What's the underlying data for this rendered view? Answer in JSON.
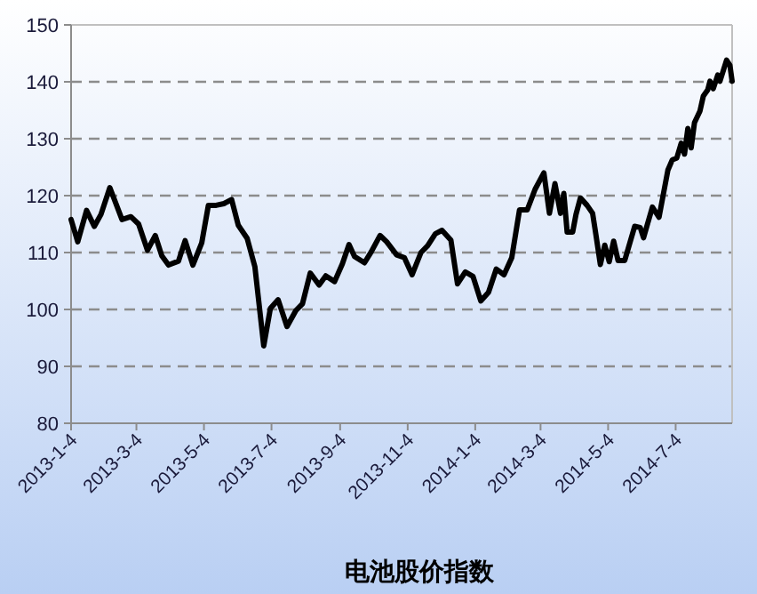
{
  "chart_data": {
    "type": "line",
    "xlabel": "电池股价指数",
    "x": [
      "2013-01-04",
      "2013-01-10",
      "2013-01-18",
      "2013-01-25",
      "2013-01-31",
      "2013-02-08",
      "2013-02-19",
      "2013-02-27",
      "2013-03-06",
      "2013-03-14",
      "2013-03-21",
      "2013-03-27",
      "2013-04-02",
      "2013-04-11",
      "2013-04-17",
      "2013-04-24",
      "2013-05-02",
      "2013-05-08",
      "2013-05-15",
      "2013-05-22",
      "2013-05-29",
      "2013-06-04",
      "2013-06-12",
      "2013-06-19",
      "2013-06-27",
      "2013-07-03",
      "2013-07-10",
      "2013-07-18",
      "2013-07-26",
      "2013-08-01",
      "2013-08-08",
      "2013-08-16",
      "2013-08-22",
      "2013-08-30",
      "2013-09-06",
      "2013-09-12",
      "2013-09-17",
      "2013-09-26",
      "2013-10-02",
      "2013-10-10",
      "2013-10-16",
      "2013-10-25",
      "2013-11-01",
      "2013-11-08",
      "2013-11-16",
      "2013-11-22",
      "2013-11-29",
      "2013-12-05",
      "2013-12-13",
      "2013-12-19",
      "2013-12-26",
      "2014-01-02",
      "2014-01-09",
      "2014-01-16",
      "2014-01-23",
      "2014-01-30",
      "2014-02-06",
      "2014-02-13",
      "2014-02-20",
      "2014-02-27",
      "2014-03-07",
      "2014-03-12",
      "2014-03-17",
      "2014-03-22",
      "2014-03-25",
      "2014-03-28",
      "2014-04-02",
      "2014-04-05",
      "2014-04-09",
      "2014-04-15",
      "2014-04-20",
      "2014-04-23",
      "2014-04-27",
      "2014-05-01",
      "2014-05-05",
      "2014-05-09",
      "2014-05-13",
      "2014-05-19",
      "2014-05-28",
      "2014-06-02",
      "2014-06-05",
      "2014-06-13",
      "2014-06-19",
      "2014-06-27",
      "2014-07-01",
      "2014-07-05",
      "2014-07-09",
      "2014-07-12",
      "2014-07-15",
      "2014-07-18",
      "2014-07-21",
      "2014-07-26",
      "2014-07-29",
      "2014-08-02",
      "2014-08-04",
      "2014-08-07",
      "2014-08-11",
      "2014-08-13",
      "2014-08-19",
      "2014-08-22",
      "2014-08-24"
    ],
    "series": [
      {
        "color": "#000000",
        "values": [
          115.8,
          111.9,
          117.4,
          114.6,
          116.7,
          121.4,
          115.8,
          116.3,
          115.0,
          110.4,
          113.0,
          109.4,
          107.8,
          108.5,
          112.1,
          107.8,
          111.7,
          118.3,
          118.3,
          118.6,
          119.3,
          114.8,
          112.5,
          107.5,
          93.6,
          100.2,
          101.7,
          97.0,
          99.8,
          101.0,
          106.4,
          104.3,
          105.9,
          104.9,
          108.0,
          111.4,
          109.3,
          108.2,
          110.1,
          113.0,
          111.9,
          109.6,
          109.1,
          106.1,
          110.0,
          111.2,
          113.3,
          113.9,
          112.2,
          104.5,
          106.6,
          105.8,
          101.5,
          103.0,
          107.1,
          106.1,
          109.1,
          117.5,
          117.5,
          121.1,
          124.0,
          116.9,
          122.1,
          116.9,
          120.4,
          113.6,
          113.6,
          116.7,
          119.6,
          118.3,
          116.9,
          113.1,
          107.9,
          111.3,
          108.4,
          112.0,
          108.6,
          108.6,
          114.6,
          114.4,
          112.6,
          118.0,
          116.2,
          124.5,
          126.3,
          126.6,
          129.2,
          127.3,
          131.8,
          128.4,
          132.8,
          134.9,
          137.5,
          138.6,
          140.1,
          138.8,
          141.2,
          140.1,
          143.8,
          142.9,
          140.1
        ]
      }
    ],
    "xlim": [
      "2013-01-04",
      "2014-08-24"
    ],
    "xticks": [
      {
        "value": "2013-01-04",
        "label": "2013-1-4"
      },
      {
        "value": "2013-03-04",
        "label": "2013-3-4"
      },
      {
        "value": "2013-05-04",
        "label": "2013-5-4"
      },
      {
        "value": "2013-07-04",
        "label": "2013-7-4"
      },
      {
        "value": "2013-09-04",
        "label": "2013-9-4"
      },
      {
        "value": "2013-11-04",
        "label": "2013-11-4"
      },
      {
        "value": "2014-01-04",
        "label": "2014-1-4"
      },
      {
        "value": "2014-03-04",
        "label": "2014-3-4"
      },
      {
        "value": "2014-05-04",
        "label": "2014-5-4"
      },
      {
        "value": "2014-07-04",
        "label": "2014-7-4"
      }
    ],
    "ylim": [
      80,
      150
    ],
    "yticks": [
      80,
      90,
      100,
      110,
      120,
      130,
      140,
      150
    ],
    "grid": "y",
    "marker": "none",
    "line_style": "solid"
  }
}
